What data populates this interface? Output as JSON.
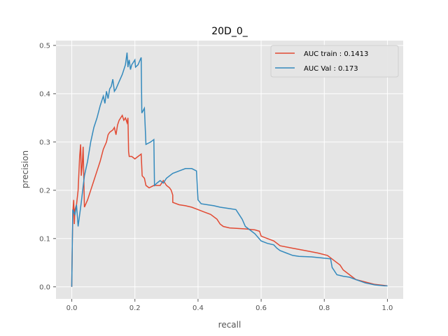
{
  "chart_data": {
    "type": "line",
    "title": "20D_0_",
    "xlabel": "recall",
    "ylabel": "precision",
    "xlim": [
      -0.05,
      1.05
    ],
    "ylim": [
      -0.025,
      0.51
    ],
    "xticks": [
      "0.0",
      "0.2",
      "0.4",
      "0.6",
      "0.8",
      "1.0"
    ],
    "yticks": [
      "0.0",
      "0.1",
      "0.2",
      "0.3",
      "0.4",
      "0.5"
    ],
    "grid": true,
    "legend_position": "upper-right",
    "series": [
      {
        "name": "AUC train : 0.1413",
        "color": "#e24a33",
        "points": [
          [
            0.0,
            0.0
          ],
          [
            0.002,
            0.1
          ],
          [
            0.004,
            0.16
          ],
          [
            0.006,
            0.18
          ],
          [
            0.008,
            0.13
          ],
          [
            0.01,
            0.16
          ],
          [
            0.015,
            0.17
          ],
          [
            0.02,
            0.2
          ],
          [
            0.025,
            0.27
          ],
          [
            0.028,
            0.295
          ],
          [
            0.03,
            0.23
          ],
          [
            0.033,
            0.25
          ],
          [
            0.036,
            0.29
          ],
          [
            0.04,
            0.165
          ],
          [
            0.05,
            0.18
          ],
          [
            0.06,
            0.2
          ],
          [
            0.07,
            0.22
          ],
          [
            0.08,
            0.24
          ],
          [
            0.09,
            0.26
          ],
          [
            0.1,
            0.285
          ],
          [
            0.11,
            0.3
          ],
          [
            0.115,
            0.315
          ],
          [
            0.12,
            0.32
          ],
          [
            0.13,
            0.325
          ],
          [
            0.135,
            0.33
          ],
          [
            0.14,
            0.315
          ],
          [
            0.145,
            0.335
          ],
          [
            0.15,
            0.345
          ],
          [
            0.155,
            0.35
          ],
          [
            0.16,
            0.355
          ],
          [
            0.165,
            0.345
          ],
          [
            0.17,
            0.35
          ],
          [
            0.175,
            0.34
          ],
          [
            0.178,
            0.35
          ],
          [
            0.18,
            0.28
          ],
          [
            0.182,
            0.27
          ],
          [
            0.19,
            0.27
          ],
          [
            0.2,
            0.265
          ],
          [
            0.21,
            0.27
          ],
          [
            0.22,
            0.275
          ],
          [
            0.223,
            0.23
          ],
          [
            0.23,
            0.225
          ],
          [
            0.235,
            0.21
          ],
          [
            0.245,
            0.205
          ],
          [
            0.26,
            0.21
          ],
          [
            0.28,
            0.21
          ],
          [
            0.29,
            0.22
          ],
          [
            0.3,
            0.21
          ],
          [
            0.31,
            0.205
          ],
          [
            0.315,
            0.2
          ],
          [
            0.32,
            0.19
          ],
          [
            0.32,
            0.175
          ],
          [
            0.34,
            0.17
          ],
          [
            0.36,
            0.168
          ],
          [
            0.38,
            0.165
          ],
          [
            0.4,
            0.16
          ],
          [
            0.42,
            0.155
          ],
          [
            0.44,
            0.15
          ],
          [
            0.46,
            0.14
          ],
          [
            0.47,
            0.13
          ],
          [
            0.48,
            0.125
          ],
          [
            0.5,
            0.122
          ],
          [
            0.55,
            0.12
          ],
          [
            0.58,
            0.118
          ],
          [
            0.595,
            0.115
          ],
          [
            0.6,
            0.105
          ],
          [
            0.62,
            0.1
          ],
          [
            0.64,
            0.095
          ],
          [
            0.66,
            0.085
          ],
          [
            0.7,
            0.08
          ],
          [
            0.74,
            0.075
          ],
          [
            0.78,
            0.07
          ],
          [
            0.81,
            0.065
          ],
          [
            0.83,
            0.055
          ],
          [
            0.85,
            0.045
          ],
          [
            0.86,
            0.035
          ],
          [
            0.88,
            0.025
          ],
          [
            0.9,
            0.015
          ],
          [
            0.93,
            0.01
          ],
          [
            0.96,
            0.005
          ],
          [
            0.99,
            0.003
          ],
          [
            1.0,
            0.002
          ]
        ]
      },
      {
        "name": "AUC Val : 0.173",
        "color": "#348abd",
        "points": [
          [
            0.0,
            0.0
          ],
          [
            0.003,
            0.16
          ],
          [
            0.006,
            0.155
          ],
          [
            0.01,
            0.15
          ],
          [
            0.015,
            0.17
          ],
          [
            0.02,
            0.125
          ],
          [
            0.03,
            0.175
          ],
          [
            0.04,
            0.23
          ],
          [
            0.05,
            0.26
          ],
          [
            0.06,
            0.3
          ],
          [
            0.07,
            0.33
          ],
          [
            0.08,
            0.35
          ],
          [
            0.09,
            0.375
          ],
          [
            0.1,
            0.395
          ],
          [
            0.105,
            0.38
          ],
          [
            0.11,
            0.405
          ],
          [
            0.115,
            0.39
          ],
          [
            0.12,
            0.41
          ],
          [
            0.125,
            0.415
          ],
          [
            0.13,
            0.43
          ],
          [
            0.135,
            0.405
          ],
          [
            0.14,
            0.41
          ],
          [
            0.15,
            0.425
          ],
          [
            0.16,
            0.44
          ],
          [
            0.17,
            0.46
          ],
          [
            0.175,
            0.485
          ],
          [
            0.178,
            0.455
          ],
          [
            0.18,
            0.465
          ],
          [
            0.182,
            0.47
          ],
          [
            0.186,
            0.45
          ],
          [
            0.19,
            0.46
          ],
          [
            0.2,
            0.47
          ],
          [
            0.202,
            0.455
          ],
          [
            0.21,
            0.46
          ],
          [
            0.22,
            0.475
          ],
          [
            0.222,
            0.36
          ],
          [
            0.23,
            0.37
          ],
          [
            0.235,
            0.295
          ],
          [
            0.25,
            0.3
          ],
          [
            0.26,
            0.305
          ],
          [
            0.262,
            0.21
          ],
          [
            0.27,
            0.215
          ],
          [
            0.28,
            0.22
          ],
          [
            0.29,
            0.215
          ],
          [
            0.3,
            0.225
          ],
          [
            0.32,
            0.235
          ],
          [
            0.34,
            0.24
          ],
          [
            0.36,
            0.245
          ],
          [
            0.38,
            0.245
          ],
          [
            0.395,
            0.24
          ],
          [
            0.4,
            0.18
          ],
          [
            0.41,
            0.172
          ],
          [
            0.43,
            0.17
          ],
          [
            0.45,
            0.168
          ],
          [
            0.47,
            0.165
          ],
          [
            0.5,
            0.162
          ],
          [
            0.52,
            0.16
          ],
          [
            0.53,
            0.15
          ],
          [
            0.54,
            0.14
          ],
          [
            0.55,
            0.125
          ],
          [
            0.56,
            0.12
          ],
          [
            0.58,
            0.11
          ],
          [
            0.6,
            0.095
          ],
          [
            0.62,
            0.09
          ],
          [
            0.64,
            0.087
          ],
          [
            0.65,
            0.08
          ],
          [
            0.66,
            0.075
          ],
          [
            0.68,
            0.07
          ],
          [
            0.7,
            0.065
          ],
          [
            0.72,
            0.063
          ],
          [
            0.76,
            0.062
          ],
          [
            0.79,
            0.06
          ],
          [
            0.82,
            0.058
          ],
          [
            0.825,
            0.04
          ],
          [
            0.83,
            0.035
          ],
          [
            0.84,
            0.025
          ],
          [
            0.86,
            0.022
          ],
          [
            0.88,
            0.02
          ],
          [
            0.9,
            0.015
          ],
          [
            0.93,
            0.008
          ],
          [
            0.96,
            0.004
          ],
          [
            0.99,
            0.002
          ],
          [
            1.0,
            0.002
          ]
        ]
      }
    ]
  }
}
